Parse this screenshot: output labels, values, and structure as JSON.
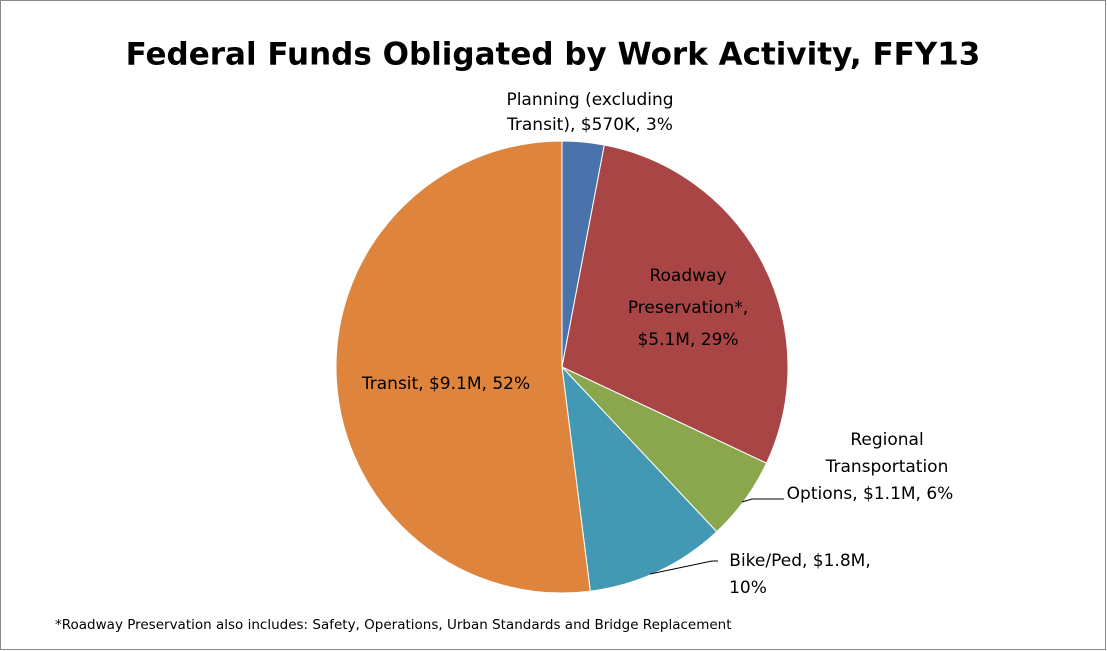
{
  "chart_data": {
    "type": "pie",
    "title": "Federal Funds Obligated by Work Activity, FFY13",
    "values": [
      3,
      29,
      6,
      10,
      52
    ],
    "value_labels": [
      [
        "Planning (excluding",
        "Transit), $570K, 3%"
      ],
      [
        "Roadway",
        "Preservation*,",
        "$5.1M, 29%"
      ],
      [
        "Regional",
        "Transportation",
        "Options, $1.1M, 6%"
      ],
      [
        "Bike/Ped, $1.8M,",
        "10%"
      ],
      [
        "Transit, $9.1M, 52%"
      ]
    ],
    "colors": [
      "#4a73ab",
      "#a94544",
      "#8aa74e",
      "#4399b4",
      "#de843c"
    ],
    "footnote": "*Roadway Preservation also includes: Safety, Operations, Urban Standards and Bridge Replacement"
  }
}
